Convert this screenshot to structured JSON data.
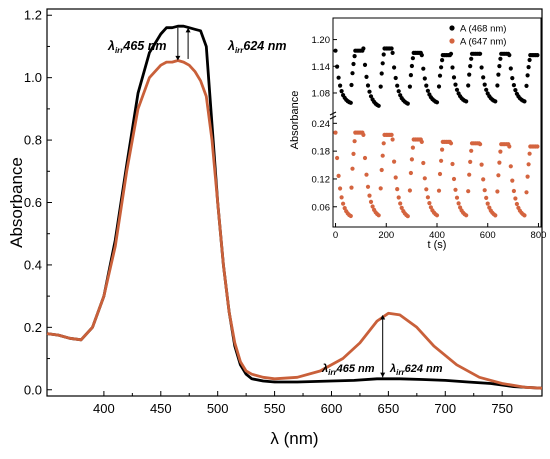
{
  "chart_data": [
    {
      "type": "line",
      "xlabel": "λ (nm)",
      "ylabel": "Absorbance",
      "xlim": [
        350,
        785
      ],
      "ylim": [
        -0.02,
        1.22
      ],
      "x_ticks": [
        "400",
        "450",
        "500",
        "550",
        "600",
        "650",
        "700",
        "750"
      ],
      "y_ticks": [
        "0.0",
        "0.2",
        "0.4",
        "0.6",
        "0.8",
        "1.0",
        "1.2"
      ],
      "series": [
        {
          "color": "#000000",
          "x": [
            350,
            360,
            370,
            380,
            390,
            400,
            410,
            420,
            430,
            440,
            450,
            455,
            460,
            465,
            470,
            475,
            480,
            485,
            490,
            495,
            500,
            505,
            510,
            515,
            520,
            525,
            530,
            540,
            550,
            570,
            600,
            620,
            640,
            660,
            680,
            700,
            720,
            740,
            760,
            785
          ],
          "y": [
            0.18,
            0.175,
            0.165,
            0.16,
            0.2,
            0.3,
            0.48,
            0.72,
            0.95,
            1.08,
            1.14,
            1.16,
            1.16,
            1.165,
            1.165,
            1.16,
            1.155,
            1.15,
            1.1,
            0.85,
            0.6,
            0.4,
            0.25,
            0.14,
            0.08,
            0.05,
            0.035,
            0.028,
            0.025,
            0.025,
            0.028,
            0.03,
            0.035,
            0.035,
            0.033,
            0.03,
            0.025,
            0.02,
            0.01,
            0.005
          ]
        },
        {
          "color": "#c9603a",
          "x": [
            350,
            360,
            370,
            380,
            390,
            400,
            410,
            420,
            430,
            440,
            450,
            455,
            460,
            465,
            470,
            475,
            480,
            485,
            490,
            495,
            500,
            505,
            510,
            515,
            520,
            525,
            530,
            540,
            550,
            570,
            590,
            610,
            625,
            640,
            650,
            660,
            675,
            690,
            710,
            730,
            750,
            770,
            785
          ],
          "y": [
            0.18,
            0.175,
            0.165,
            0.16,
            0.2,
            0.3,
            0.46,
            0.7,
            0.9,
            1.0,
            1.04,
            1.05,
            1.05,
            1.055,
            1.05,
            1.04,
            1.02,
            0.99,
            0.94,
            0.8,
            0.6,
            0.4,
            0.25,
            0.15,
            0.09,
            0.06,
            0.05,
            0.04,
            0.035,
            0.04,
            0.06,
            0.1,
            0.15,
            0.22,
            0.245,
            0.24,
            0.2,
            0.14,
            0.08,
            0.04,
            0.02,
            0.008,
            0.005
          ]
        }
      ],
      "annotations": {
        "left_peak_a": "465 nm",
        "left_peak_b": "624 nm",
        "right_peak_a": "465 nm",
        "right_peak_b": "624 nm",
        "lambda_symbol": "λ",
        "subscript": "irr"
      }
    },
    {
      "type": "scatter",
      "xlabel": "t (s)",
      "ylabel": "Absorbance",
      "xlim": [
        -10,
        810
      ],
      "top_panel_ylim": [
        1.035,
        1.235
      ],
      "bottom_panel_ylim": [
        0.025,
        0.245
      ],
      "x_ticks": [
        "0",
        "200",
        "400",
        "600",
        "800"
      ],
      "top_y_ticks": [
        "1.20",
        "1.14",
        "1.08"
      ],
      "bottom_y_ticks": [
        "0.24",
        "0.18",
        "0.12",
        "0.06"
      ],
      "series": [
        {
          "name": "A (468 nm)",
          "color": "#000000",
          "cycles": [
            {
              "t_start": 0,
              "t_min": 60,
              "t_recover": 78,
              "t_end": 110,
              "low": 1.058,
              "high": 1.175
            },
            {
              "t_start": 110,
              "t_min": 175,
              "t_recover": 193,
              "t_end": 225,
              "low": 1.05,
              "high": 1.18
            },
            {
              "t_start": 225,
              "t_min": 290,
              "t_recover": 308,
              "t_end": 340,
              "low": 1.055,
              "high": 1.17
            },
            {
              "t_start": 340,
              "t_min": 405,
              "t_recover": 423,
              "t_end": 455,
              "low": 1.058,
              "high": 1.165
            },
            {
              "t_start": 455,
              "t_min": 520,
              "t_recover": 538,
              "t_end": 570,
              "low": 1.06,
              "high": 1.168
            },
            {
              "t_start": 570,
              "t_min": 635,
              "t_recover": 653,
              "t_end": 685,
              "low": 1.06,
              "high": 1.168
            },
            {
              "t_start": 685,
              "t_min": 750,
              "t_recover": 768,
              "t_end": 800,
              "low": 1.06,
              "high": 1.165
            }
          ]
        },
        {
          "name": "A (647 nm)",
          "color": "#d4643f",
          "cycles": [
            {
              "t_start": 0,
              "t_min": 60,
              "t_recover": 78,
              "t_end": 110,
              "low": 0.04,
              "high": 0.22
            },
            {
              "t_start": 110,
              "t_min": 175,
              "t_recover": 193,
              "t_end": 225,
              "low": 0.04,
              "high": 0.215
            },
            {
              "t_start": 225,
              "t_min": 290,
              "t_recover": 308,
              "t_end": 340,
              "low": 0.038,
              "high": 0.205
            },
            {
              "t_start": 340,
              "t_min": 405,
              "t_recover": 423,
              "t_end": 455,
              "low": 0.04,
              "high": 0.2
            },
            {
              "t_start": 455,
              "t_min": 520,
              "t_recover": 538,
              "t_end": 570,
              "low": 0.04,
              "high": 0.197
            },
            {
              "t_start": 570,
              "t_min": 635,
              "t_recover": 653,
              "t_end": 685,
              "low": 0.04,
              "high": 0.195
            },
            {
              "t_start": 685,
              "t_min": 750,
              "t_recover": 768,
              "t_end": 800,
              "low": 0.04,
              "high": 0.19
            }
          ]
        }
      ]
    }
  ]
}
